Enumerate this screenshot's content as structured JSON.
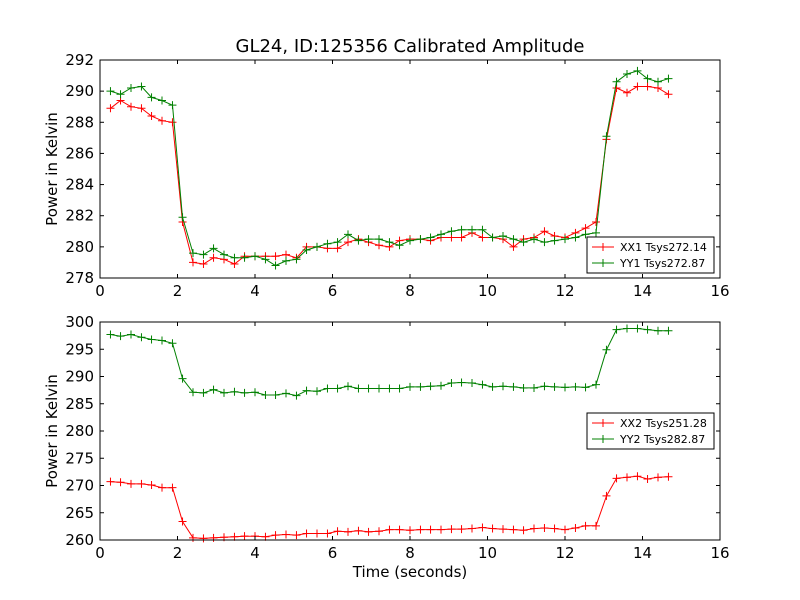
{
  "title": "GL24, ID:125356 Calibrated Amplitude",
  "colors": {
    "red": "#ff0000",
    "green": "#008000",
    "frame": "#000000",
    "background": "#ffffff"
  },
  "chart_data": [
    {
      "type": "line",
      "title": "GL24, ID:125356 Calibrated Amplitude",
      "xlabel": "",
      "ylabel": "Power in Kelvin",
      "xlim": [
        0,
        16
      ],
      "ylim": [
        278,
        292
      ],
      "xticks": [
        "0",
        "2",
        "4",
        "6",
        "8",
        "10",
        "12",
        "14",
        "16"
      ],
      "yticks": [
        "278",
        "280",
        "282",
        "284",
        "286",
        "288",
        "290",
        "292"
      ],
      "grid": false,
      "legend_position": "lower-right",
      "marker": "+",
      "series": [
        {
          "name": "XX1 Tsys272.14",
          "color": "#ff0000",
          "x": [
            0.27,
            0.53,
            0.8,
            1.07,
            1.33,
            1.6,
            1.87,
            2.13,
            2.4,
            2.67,
            2.93,
            3.2,
            3.47,
            3.73,
            4.0,
            4.27,
            4.53,
            4.8,
            5.07,
            5.33,
            5.6,
            5.87,
            6.13,
            6.4,
            6.67,
            6.93,
            7.2,
            7.47,
            7.73,
            8.0,
            8.27,
            8.53,
            8.8,
            9.07,
            9.33,
            9.6,
            9.87,
            10.13,
            10.4,
            10.67,
            10.93,
            11.2,
            11.47,
            11.73,
            12.0,
            12.27,
            12.53,
            12.8,
            13.07,
            13.33,
            13.6,
            13.87,
            14.13,
            14.4,
            14.67
          ],
          "y": [
            288.9,
            289.4,
            289.0,
            288.9,
            288.4,
            288.1,
            288.0,
            281.6,
            279.0,
            278.9,
            279.3,
            279.2,
            278.9,
            279.4,
            279.4,
            279.4,
            279.4,
            279.5,
            279.3,
            280.0,
            280.0,
            279.9,
            279.9,
            280.3,
            280.5,
            280.3,
            280.1,
            280.0,
            280.4,
            280.5,
            280.5,
            280.4,
            280.6,
            280.6,
            280.6,
            280.9,
            280.6,
            280.6,
            280.5,
            280.0,
            280.5,
            280.6,
            281.0,
            280.7,
            280.6,
            280.9,
            281.2,
            281.6,
            286.9,
            290.2,
            289.9,
            290.3,
            290.3,
            290.2,
            289.8
          ]
        },
        {
          "name": "YY1 Tsys272.87",
          "color": "#008000",
          "x": [
            0.27,
            0.53,
            0.8,
            1.07,
            1.33,
            1.6,
            1.87,
            2.13,
            2.4,
            2.67,
            2.93,
            3.2,
            3.47,
            3.73,
            4.0,
            4.27,
            4.53,
            4.8,
            5.07,
            5.33,
            5.6,
            5.87,
            6.13,
            6.4,
            6.67,
            6.93,
            7.2,
            7.47,
            7.73,
            8.0,
            8.27,
            8.53,
            8.8,
            9.07,
            9.33,
            9.6,
            9.87,
            10.13,
            10.4,
            10.67,
            10.93,
            11.2,
            11.47,
            11.73,
            12.0,
            12.27,
            12.53,
            12.8,
            13.07,
            13.33,
            13.6,
            13.87,
            14.13,
            14.4,
            14.67
          ],
          "y": [
            290.0,
            289.8,
            290.2,
            290.3,
            289.6,
            289.4,
            289.1,
            281.9,
            279.6,
            279.5,
            279.9,
            279.5,
            279.3,
            279.3,
            279.4,
            279.2,
            278.8,
            279.1,
            279.2,
            279.8,
            280.0,
            280.2,
            280.3,
            280.8,
            280.4,
            280.5,
            280.5,
            280.3,
            280.1,
            280.4,
            280.5,
            280.6,
            280.8,
            281.0,
            281.1,
            281.1,
            281.1,
            280.6,
            280.7,
            280.5,
            280.3,
            280.5,
            280.3,
            280.4,
            280.5,
            280.6,
            280.8,
            280.9,
            287.1,
            290.6,
            291.1,
            291.3,
            290.8,
            290.6,
            290.8
          ]
        }
      ]
    },
    {
      "type": "line",
      "title": "",
      "xlabel": "Time (seconds)",
      "ylabel": "Power in Kelvin",
      "xlim": [
        0,
        16
      ],
      "ylim": [
        260,
        300
      ],
      "xticks": [
        "0",
        "2",
        "4",
        "6",
        "8",
        "10",
        "12",
        "14",
        "16"
      ],
      "yticks": [
        "260",
        "265",
        "270",
        "275",
        "280",
        "285",
        "290",
        "295",
        "300"
      ],
      "grid": false,
      "legend_position": "center-right",
      "marker": "+",
      "series": [
        {
          "name": "XX2 Tsys251.28",
          "color": "#ff0000",
          "x": [
            0.27,
            0.53,
            0.8,
            1.07,
            1.33,
            1.6,
            1.87,
            2.13,
            2.4,
            2.67,
            2.93,
            3.2,
            3.47,
            3.73,
            4.0,
            4.27,
            4.53,
            4.8,
            5.07,
            5.33,
            5.6,
            5.87,
            6.13,
            6.4,
            6.67,
            6.93,
            7.2,
            7.47,
            7.73,
            8.0,
            8.27,
            8.53,
            8.8,
            9.07,
            9.33,
            9.6,
            9.87,
            10.13,
            10.4,
            10.67,
            10.93,
            11.2,
            11.47,
            11.73,
            12.0,
            12.27,
            12.53,
            12.8,
            13.07,
            13.33,
            13.6,
            13.87,
            14.13,
            14.4,
            14.67
          ],
          "y": [
            270.7,
            270.6,
            270.3,
            270.3,
            270.1,
            269.6,
            269.6,
            263.4,
            260.4,
            260.3,
            260.4,
            260.5,
            260.6,
            260.7,
            260.7,
            260.6,
            260.9,
            261.0,
            260.9,
            261.2,
            261.2,
            261.2,
            261.6,
            261.5,
            261.7,
            261.5,
            261.6,
            261.9,
            261.9,
            261.8,
            261.9,
            261.9,
            261.9,
            262.0,
            262.0,
            262.1,
            262.3,
            262.1,
            262.0,
            261.9,
            261.8,
            262.1,
            262.2,
            262.1,
            261.9,
            262.2,
            262.6,
            262.6,
            268.1,
            271.3,
            271.5,
            271.7,
            271.2,
            271.5,
            271.6
          ]
        },
        {
          "name": "YY2 Tsys282.87",
          "color": "#008000",
          "x": [
            0.27,
            0.53,
            0.8,
            1.07,
            1.33,
            1.6,
            1.87,
            2.13,
            2.4,
            2.67,
            2.93,
            3.2,
            3.47,
            3.73,
            4.0,
            4.27,
            4.53,
            4.8,
            5.07,
            5.33,
            5.6,
            5.87,
            6.13,
            6.4,
            6.67,
            6.93,
            7.2,
            7.47,
            7.73,
            8.0,
            8.27,
            8.53,
            8.8,
            9.07,
            9.33,
            9.6,
            9.87,
            10.13,
            10.4,
            10.67,
            10.93,
            11.2,
            11.47,
            11.73,
            12.0,
            12.27,
            12.53,
            12.8,
            13.07,
            13.33,
            13.6,
            13.87,
            14.13,
            14.4,
            14.67
          ],
          "y": [
            297.7,
            297.4,
            297.7,
            297.2,
            296.8,
            296.6,
            296.1,
            289.6,
            287.1,
            287.0,
            287.6,
            287.0,
            287.2,
            287.0,
            287.1,
            286.6,
            286.6,
            286.9,
            286.5,
            287.4,
            287.3,
            287.8,
            287.8,
            288.2,
            287.8,
            287.8,
            287.8,
            287.8,
            287.8,
            288.1,
            288.1,
            288.2,
            288.3,
            288.8,
            288.9,
            288.8,
            288.5,
            288.1,
            288.2,
            288.1,
            287.9,
            287.9,
            288.2,
            288.1,
            288.0,
            288.1,
            288.0,
            288.5,
            294.9,
            298.6,
            298.8,
            298.8,
            298.6,
            298.4,
            298.4
          ]
        }
      ]
    }
  ]
}
